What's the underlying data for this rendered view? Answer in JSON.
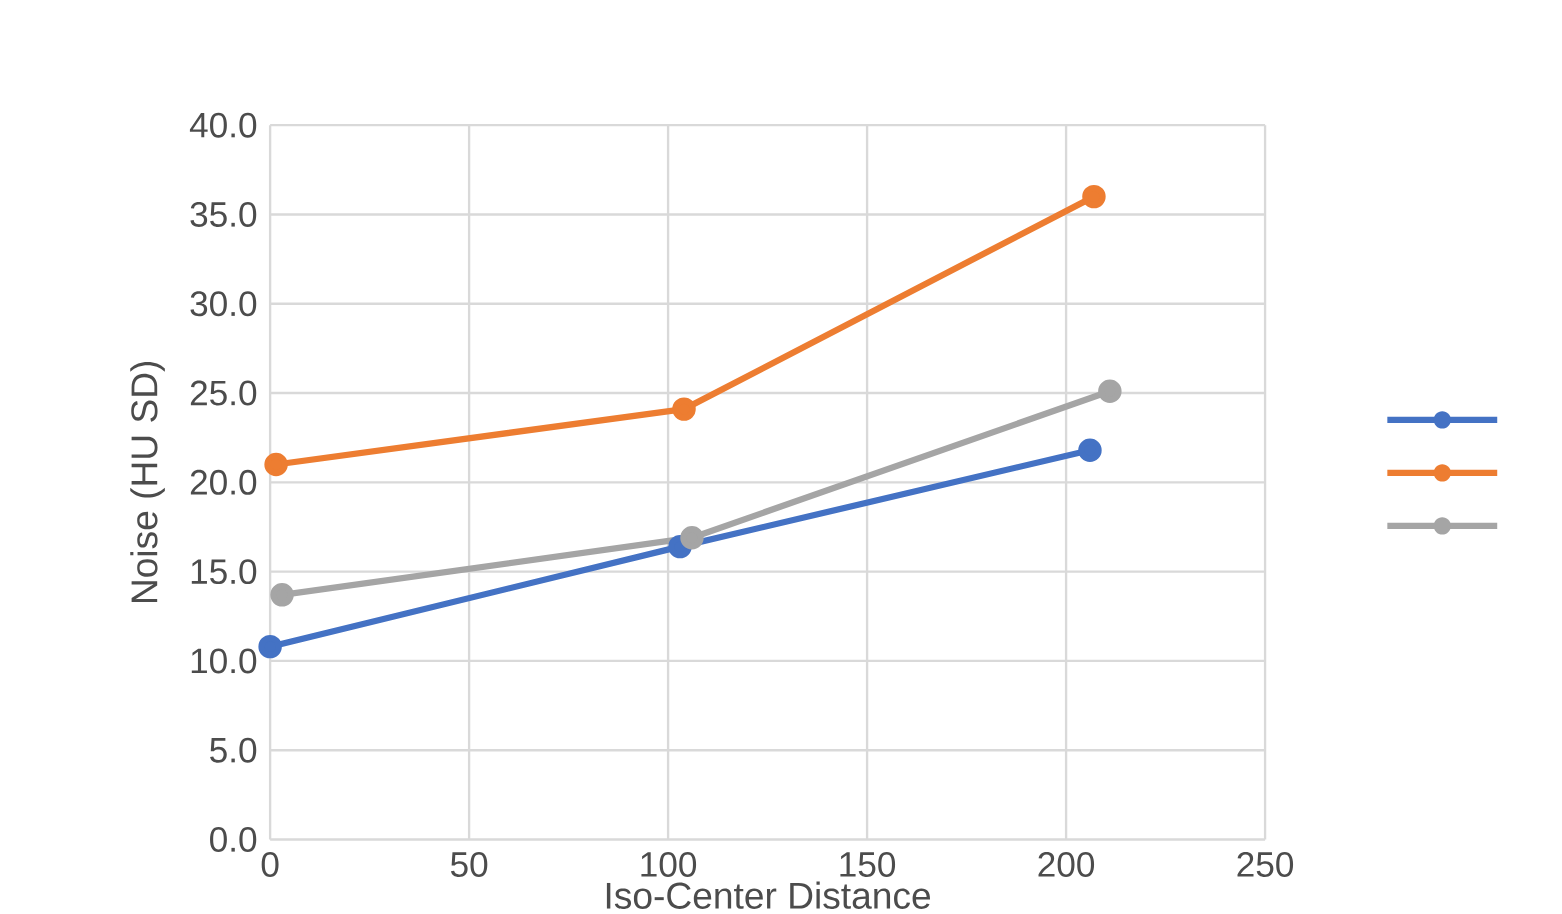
{
  "chart_data": {
    "type": "line",
    "xlabel": "Iso-Center Distance",
    "ylabel": "Noise (HU SD)",
    "xlim": [
      0,
      250
    ],
    "xticks": [
      0,
      50,
      100,
      150,
      200,
      250
    ],
    "ylim": [
      0,
      40
    ],
    "yticks": [
      {
        "value": 0,
        "label": "0.0"
      },
      {
        "value": 5,
        "label": "5.0"
      },
      {
        "value": 10,
        "label": "10.0"
      },
      {
        "value": 15,
        "label": "15.0"
      },
      {
        "value": 20,
        "label": "20.0"
      },
      {
        "value": 25,
        "label": "25.0"
      },
      {
        "value": 30,
        "label": "30.0"
      },
      {
        "value": 35,
        "label": "35.0"
      },
      {
        "value": 40,
        "label": "40.0"
      }
    ],
    "grid": true,
    "marker": "circle",
    "line_style": "solid",
    "series": [
      {
        "color": "#4472c4",
        "x": [
          0,
          103,
          206
        ],
        "values": [
          10.8,
          16.4,
          21.8
        ]
      },
      {
        "color": "#ed7d31",
        "x": [
          1.5,
          104,
          207
        ],
        "values": [
          21.0,
          24.1,
          36.0
        ]
      },
      {
        "color": "#a5a5a5",
        "x": [
          3,
          106,
          211
        ],
        "values": [
          13.7,
          16.9,
          25.1
        ]
      }
    ]
  }
}
